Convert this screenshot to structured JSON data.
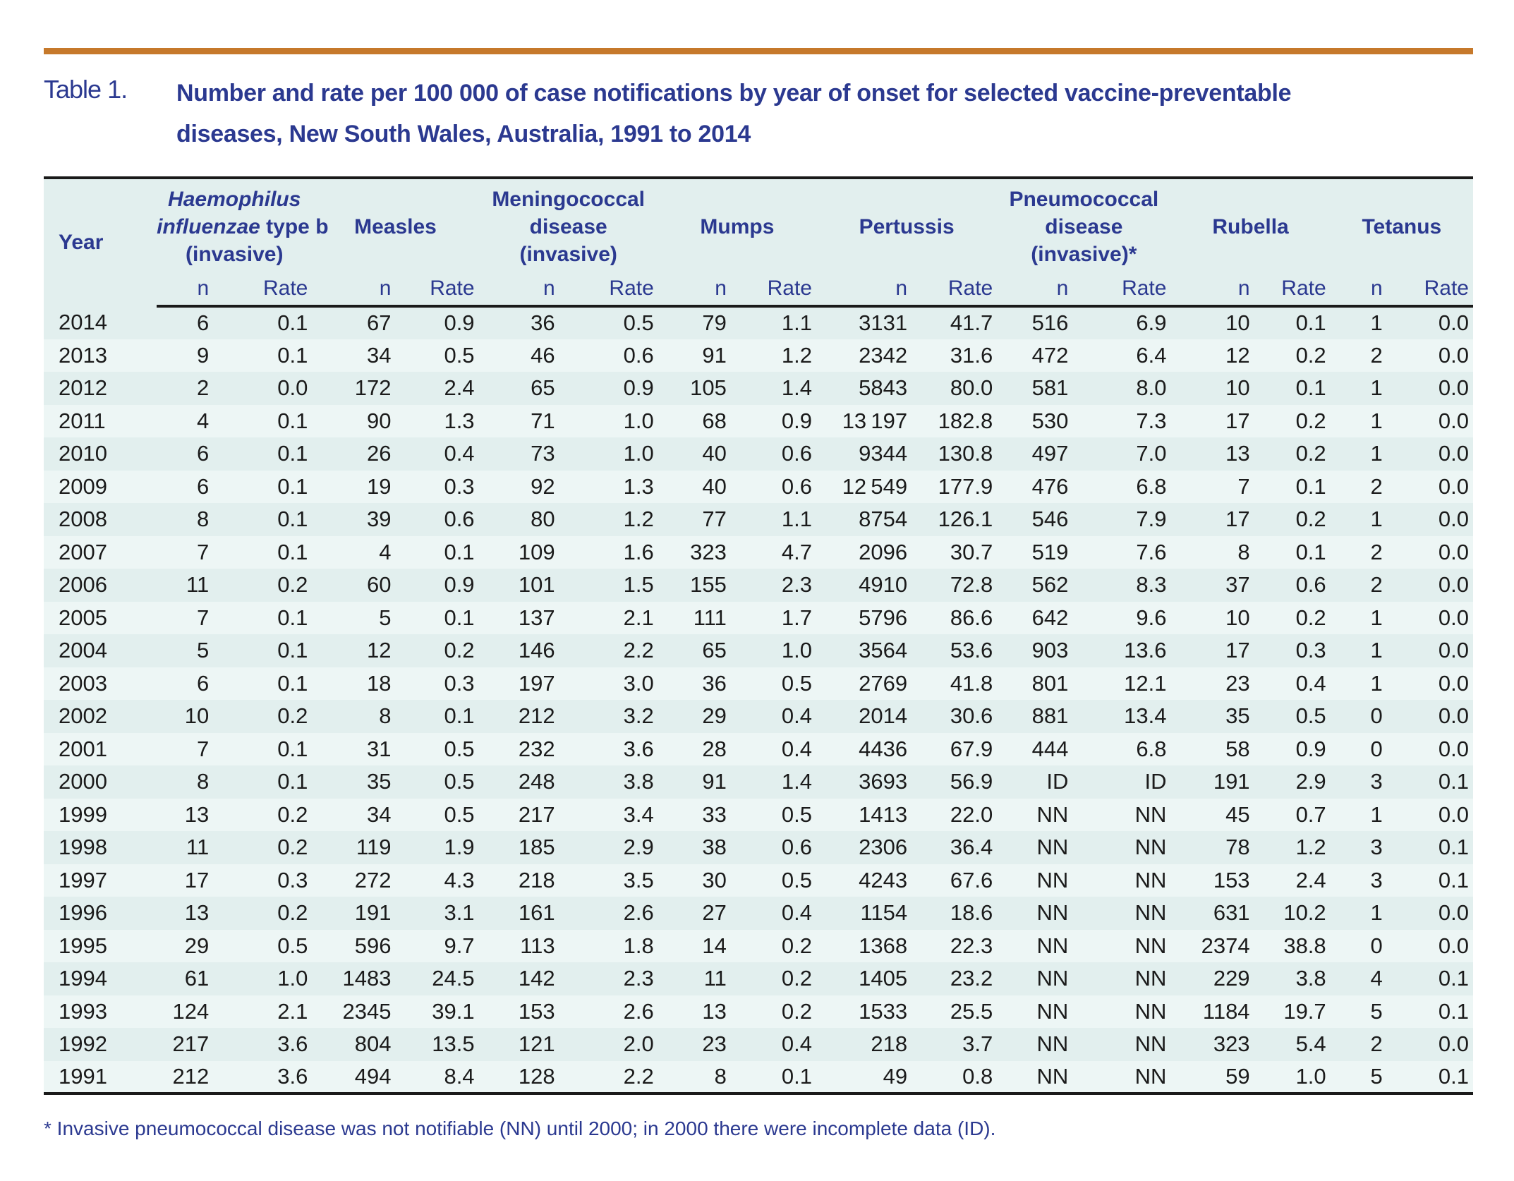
{
  "title": {
    "label": "Table 1.",
    "lines": [
      "Number and rate per 100 000 of case notifications by year of onset for selected vaccine-preventable",
      "diseases, New South Wales, Australia, 1991 to 2014"
    ]
  },
  "footnote": "* Invasive pneumococcal disease was not notifiable (NN) until 2000; in 2000 there were incomplete data (ID).",
  "colors": {
    "accent_rule": "#c6792b",
    "heading_navy": "#2b3990",
    "row_stripe_dark": "#e2efee",
    "row_stripe_light": "#edf6f5",
    "border_black": "#1a1a1a"
  },
  "table": {
    "year_header": "Year",
    "sub_header_n": "n",
    "sub_header_rate": "Rate",
    "column_groups": [
      {
        "id": "hib",
        "name_lines": [
          [
            {
              "text": "Haemophilus",
              "italic": true
            }
          ],
          [
            {
              "text": "influenzae",
              "italic": true
            },
            {
              "text": " type b",
              "italic": false
            }
          ],
          [
            {
              "text": "(invasive)",
              "italic": false
            }
          ]
        ]
      },
      {
        "id": "measles",
        "name_lines": [
          [
            {
              "text": "Measles",
              "italic": false
            }
          ]
        ]
      },
      {
        "id": "meningococcal-disease",
        "name_lines": [
          [
            {
              "text": "Meningococcal",
              "italic": false
            }
          ],
          [
            {
              "text": "disease",
              "italic": false
            }
          ],
          [
            {
              "text": "(invasive)",
              "italic": false
            }
          ]
        ]
      },
      {
        "id": "mumps",
        "name_lines": [
          [
            {
              "text": "Mumps",
              "italic": false
            }
          ]
        ]
      },
      {
        "id": "pertussis",
        "name_lines": [
          [
            {
              "text": "Pertussis",
              "italic": false
            }
          ]
        ]
      },
      {
        "id": "pneumococcal-disease",
        "name_lines": [
          [
            {
              "text": "Pneumococcal",
              "italic": false
            }
          ],
          [
            {
              "text": "disease",
              "italic": false
            }
          ],
          [
            {
              "text": "(invasive)*",
              "italic": false
            }
          ]
        ]
      },
      {
        "id": "rubella",
        "name_lines": [
          [
            {
              "text": "Rubella",
              "italic": false
            }
          ]
        ]
      },
      {
        "id": "tetanus",
        "name_lines": [
          [
            {
              "text": "Tetanus",
              "italic": false
            }
          ]
        ]
      }
    ],
    "rows": [
      {
        "year": "2014",
        "values": [
          "6",
          "0.1",
          "67",
          "0.9",
          "36",
          "0.5",
          "79",
          "1.1",
          "3131",
          "41.7",
          "516",
          "6.9",
          "10",
          "0.1",
          "1",
          "0.0"
        ]
      },
      {
        "year": "2013",
        "values": [
          "9",
          "0.1",
          "34",
          "0.5",
          "46",
          "0.6",
          "91",
          "1.2",
          "2342",
          "31.6",
          "472",
          "6.4",
          "12",
          "0.2",
          "2",
          "0.0"
        ]
      },
      {
        "year": "2012",
        "values": [
          "2",
          "0.0",
          "172",
          "2.4",
          "65",
          "0.9",
          "105",
          "1.4",
          "5843",
          "80.0",
          "581",
          "8.0",
          "10",
          "0.1",
          "1",
          "0.0"
        ]
      },
      {
        "year": "2011",
        "values": [
          "4",
          "0.1",
          "90",
          "1.3",
          "71",
          "1.0",
          "68",
          "0.9",
          "13 197",
          "182.8",
          "530",
          "7.3",
          "17",
          "0.2",
          "1",
          "0.0"
        ]
      },
      {
        "year": "2010",
        "values": [
          "6",
          "0.1",
          "26",
          "0.4",
          "73",
          "1.0",
          "40",
          "0.6",
          "9344",
          "130.8",
          "497",
          "7.0",
          "13",
          "0.2",
          "1",
          "0.0"
        ]
      },
      {
        "year": "2009",
        "values": [
          "6",
          "0.1",
          "19",
          "0.3",
          "92",
          "1.3",
          "40",
          "0.6",
          "12 549",
          "177.9",
          "476",
          "6.8",
          "7",
          "0.1",
          "2",
          "0.0"
        ]
      },
      {
        "year": "2008",
        "values": [
          "8",
          "0.1",
          "39",
          "0.6",
          "80",
          "1.2",
          "77",
          "1.1",
          "8754",
          "126.1",
          "546",
          "7.9",
          "17",
          "0.2",
          "1",
          "0.0"
        ]
      },
      {
        "year": "2007",
        "values": [
          "7",
          "0.1",
          "4",
          "0.1",
          "109",
          "1.6",
          "323",
          "4.7",
          "2096",
          "30.7",
          "519",
          "7.6",
          "8",
          "0.1",
          "2",
          "0.0"
        ]
      },
      {
        "year": "2006",
        "values": [
          "11",
          "0.2",
          "60",
          "0.9",
          "101",
          "1.5",
          "155",
          "2.3",
          "4910",
          "72.8",
          "562",
          "8.3",
          "37",
          "0.6",
          "2",
          "0.0"
        ]
      },
      {
        "year": "2005",
        "values": [
          "7",
          "0.1",
          "5",
          "0.1",
          "137",
          "2.1",
          "111",
          "1.7",
          "5796",
          "86.6",
          "642",
          "9.6",
          "10",
          "0.2",
          "1",
          "0.0"
        ]
      },
      {
        "year": "2004",
        "values": [
          "5",
          "0.1",
          "12",
          "0.2",
          "146",
          "2.2",
          "65",
          "1.0",
          "3564",
          "53.6",
          "903",
          "13.6",
          "17",
          "0.3",
          "1",
          "0.0"
        ]
      },
      {
        "year": "2003",
        "values": [
          "6",
          "0.1",
          "18",
          "0.3",
          "197",
          "3.0",
          "36",
          "0.5",
          "2769",
          "41.8",
          "801",
          "12.1",
          "23",
          "0.4",
          "1",
          "0.0"
        ]
      },
      {
        "year": "2002",
        "values": [
          "10",
          "0.2",
          "8",
          "0.1",
          "212",
          "3.2",
          "29",
          "0.4",
          "2014",
          "30.6",
          "881",
          "13.4",
          "35",
          "0.5",
          "0",
          "0.0"
        ]
      },
      {
        "year": "2001",
        "values": [
          "7",
          "0.1",
          "31",
          "0.5",
          "232",
          "3.6",
          "28",
          "0.4",
          "4436",
          "67.9",
          "444",
          "6.8",
          "58",
          "0.9",
          "0",
          "0.0"
        ]
      },
      {
        "year": "2000",
        "values": [
          "8",
          "0.1",
          "35",
          "0.5",
          "248",
          "3.8",
          "91",
          "1.4",
          "3693",
          "56.9",
          "ID",
          "ID",
          "191",
          "2.9",
          "3",
          "0.1"
        ]
      },
      {
        "year": "1999",
        "values": [
          "13",
          "0.2",
          "34",
          "0.5",
          "217",
          "3.4",
          "33",
          "0.5",
          "1413",
          "22.0",
          "NN",
          "NN",
          "45",
          "0.7",
          "1",
          "0.0"
        ]
      },
      {
        "year": "1998",
        "values": [
          "11",
          "0.2",
          "119",
          "1.9",
          "185",
          "2.9",
          "38",
          "0.6",
          "2306",
          "36.4",
          "NN",
          "NN",
          "78",
          "1.2",
          "3",
          "0.1"
        ]
      },
      {
        "year": "1997",
        "values": [
          "17",
          "0.3",
          "272",
          "4.3",
          "218",
          "3.5",
          "30",
          "0.5",
          "4243",
          "67.6",
          "NN",
          "NN",
          "153",
          "2.4",
          "3",
          "0.1"
        ]
      },
      {
        "year": "1996",
        "values": [
          "13",
          "0.2",
          "191",
          "3.1",
          "161",
          "2.6",
          "27",
          "0.4",
          "1154",
          "18.6",
          "NN",
          "NN",
          "631",
          "10.2",
          "1",
          "0.0"
        ]
      },
      {
        "year": "1995",
        "values": [
          "29",
          "0.5",
          "596",
          "9.7",
          "113",
          "1.8",
          "14",
          "0.2",
          "1368",
          "22.3",
          "NN",
          "NN",
          "2374",
          "38.8",
          "0",
          "0.0"
        ]
      },
      {
        "year": "1994",
        "values": [
          "61",
          "1.0",
          "1483",
          "24.5",
          "142",
          "2.3",
          "11",
          "0.2",
          "1405",
          "23.2",
          "NN",
          "NN",
          "229",
          "3.8",
          "4",
          "0.1"
        ]
      },
      {
        "year": "1993",
        "values": [
          "124",
          "2.1",
          "2345",
          "39.1",
          "153",
          "2.6",
          "13",
          "0.2",
          "1533",
          "25.5",
          "NN",
          "NN",
          "1184",
          "19.7",
          "5",
          "0.1"
        ]
      },
      {
        "year": "1992",
        "values": [
          "217",
          "3.6",
          "804",
          "13.5",
          "121",
          "2.0",
          "23",
          "0.4",
          "218",
          "3.7",
          "NN",
          "NN",
          "323",
          "5.4",
          "2",
          "0.0"
        ]
      },
      {
        "year": "1991",
        "values": [
          "212",
          "3.6",
          "494",
          "8.4",
          "128",
          "2.2",
          "8",
          "0.1",
          "49",
          "0.8",
          "NN",
          "NN",
          "59",
          "1.0",
          "5",
          "0.1"
        ]
      }
    ]
  }
}
